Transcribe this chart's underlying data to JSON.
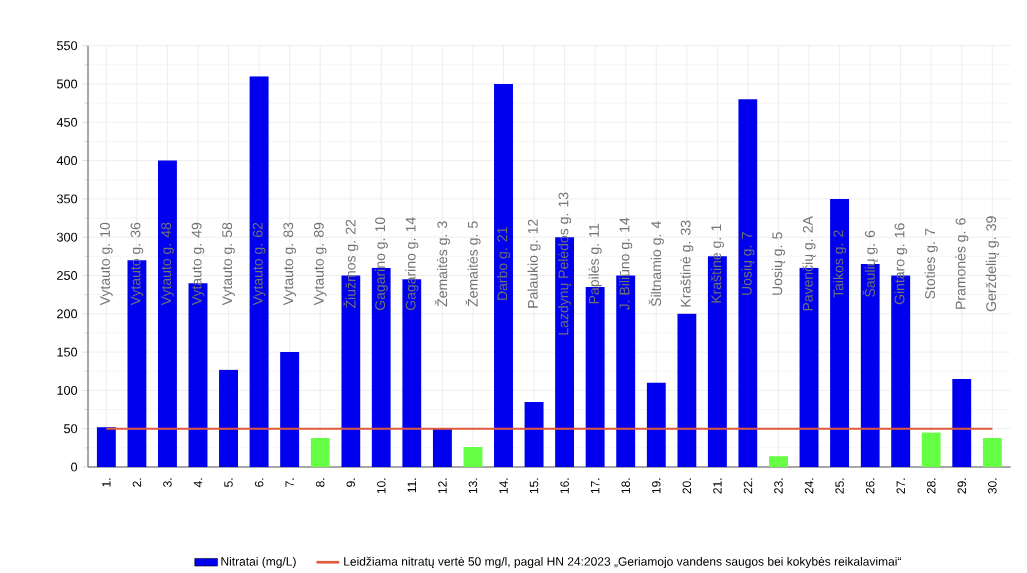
{
  "chart_data": {
    "type": "bar",
    "categories": [
      "1.",
      "2.",
      "3.",
      "4.",
      "5.",
      "6.",
      "7.",
      "8.",
      "9.",
      "10.",
      "11.",
      "12.",
      "13.",
      "14.",
      "15.",
      "16.",
      "17.",
      "18.",
      "19.",
      "20.",
      "21.",
      "22.",
      "23.",
      "24.",
      "25.",
      "26.",
      "27.",
      "28.",
      "29.",
      "30."
    ],
    "series": [
      {
        "name": "Nitratai (mg/L)",
        "color": "#0000ee",
        "colors": [
          "#0000ee",
          "#0000ee",
          "#0000ee",
          "#0000ee",
          "#0000ee",
          "#0000ee",
          "#0000ee",
          "#66ff44",
          "#0000ee",
          "#0000ee",
          "#0000ee",
          "#0000ee",
          "#66ff44",
          "#0000ee",
          "#0000ee",
          "#0000ee",
          "#0000ee",
          "#0000ee",
          "#0000ee",
          "#0000ee",
          "#0000ee",
          "#0000ee",
          "#66ff44",
          "#0000ee",
          "#0000ee",
          "#0000ee",
          "#0000ee",
          "#66ff44",
          "#0000ee",
          "#66ff44"
        ],
        "values": [
          52,
          270,
          400,
          240,
          127,
          510,
          150,
          38,
          250,
          260,
          245,
          50,
          26,
          500,
          85,
          300,
          235,
          250,
          110,
          200,
          275,
          480,
          14,
          260,
          350,
          265,
          250,
          45,
          115,
          38
        ]
      }
    ],
    "ylim": [
      0,
      550
    ],
    "yticks": [
      0,
      50,
      100,
      150,
      200,
      250,
      300,
      350,
      400,
      450,
      500,
      550
    ],
    "grid": true,
    "legend": "bottom",
    "ref_lines": [
      {
        "axis": "y",
        "value": 50,
        "label": "Leidžiama nitratų vertė 50 mg/l, pagal HN 24:2023 „Geriamojo vandens saugos bei kokybės reikalavimai“",
        "color": "#e05a3c"
      }
    ],
    "annotations": [
      "Vytauto g. 10",
      "Vytauto g. 36",
      "Vytauto g. 48",
      "Vytauto g. 49",
      "Vytauto g. 58",
      "Vytauto g. 62",
      "Vytauto g. 83",
      "Vytauto g. 89",
      "Žiužmos g. 22",
      "Gagarino g. 10",
      "Gagarino g. 14",
      "Žemaitės g. 3",
      "Žemaitės g. 5",
      "Darbo g. 21",
      "Palaukio g. 12",
      "Lazdynų Pelėdos g. 13",
      "Papilės g. 11",
      "J. Biliūno g. 14",
      "Šiltnamio g. 4",
      "Kraštinė g. 33",
      "Kraštinė g. 1",
      "Uosių g. 7",
      "Uosių g. 5",
      "Pavenčių g. 2A",
      "Taikos g. 2",
      "Šaulių g. 6",
      "Gintaro g. 16",
      "Stoties g. 7",
      "Pramonės g. 6",
      "Gerždelių g. 39"
    ]
  }
}
